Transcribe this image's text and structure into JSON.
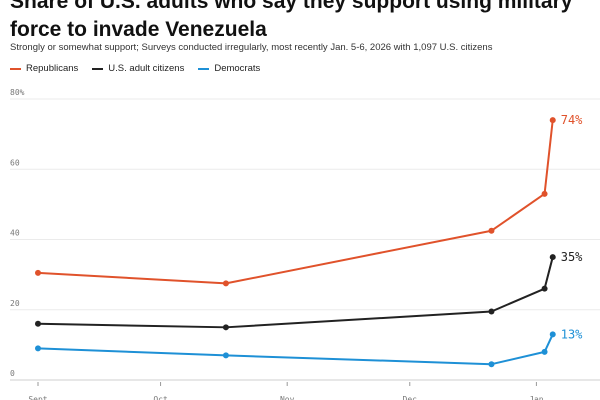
{
  "title": "Share of U.S. adults who say they support using military force to invade Venezuela",
  "subtitle": "Strongly or somewhat support; Surveys conducted irregularly, most recently Jan. 5-6, 2026 with 1,097 U.S. citizens",
  "chart_data": {
    "type": "line",
    "title": "Share of U.S. adults who say they support using military force to invade Venezuela",
    "subtitle": "Strongly or somewhat support; Surveys conducted irregularly, most recently Jan. 5-6, 2026 with 1,097 U.S. citizens",
    "xlabel": "",
    "ylabel": "",
    "ylim": [
      0,
      80
    ],
    "yticks": [
      {
        "value": 0,
        "label": "0"
      },
      {
        "value": 20,
        "label": "20"
      },
      {
        "value": 40,
        "label": "40"
      },
      {
        "value": 60,
        "label": "60"
      },
      {
        "value": 80,
        "label": "80%"
      }
    ],
    "grid": true,
    "legend_position": "top-left",
    "x_domain": [
      "2025-09-01",
      "2026-01-08"
    ],
    "xticks": [
      {
        "date": "2025-09-01",
        "label": "Sept"
      },
      {
        "date": "2025-10-01",
        "label": "Oct"
      },
      {
        "date": "2025-11-01",
        "label": "Nov"
      },
      {
        "date": "2025-12-01",
        "label": "Dec"
      },
      {
        "date": "2026-01-01",
        "label": "Jan"
      }
    ],
    "series": [
      {
        "name": "Republicans",
        "color": "#e0522b",
        "points": [
          {
            "date": "2025-09-01",
            "value": 30.5
          },
          {
            "date": "2025-10-17",
            "value": 27.5
          },
          {
            "date": "2025-12-21",
            "value": 42.5
          },
          {
            "date": "2026-01-03",
            "value": 53
          },
          {
            "date": "2026-01-05",
            "value": 74
          }
        ],
        "end_label": "74%"
      },
      {
        "name": "U.S. adult citizens",
        "color": "#222222",
        "points": [
          {
            "date": "2025-09-01",
            "value": 16
          },
          {
            "date": "2025-10-17",
            "value": 15
          },
          {
            "date": "2025-12-21",
            "value": 19.5
          },
          {
            "date": "2026-01-03",
            "value": 26
          },
          {
            "date": "2026-01-05",
            "value": 35
          }
        ],
        "end_label": "35%"
      },
      {
        "name": "Democrats",
        "color": "#1e90d6",
        "points": [
          {
            "date": "2025-09-01",
            "value": 9
          },
          {
            "date": "2025-10-17",
            "value": 7
          },
          {
            "date": "2025-12-21",
            "value": 4.5
          },
          {
            "date": "2026-01-03",
            "value": 8
          },
          {
            "date": "2026-01-05",
            "value": 13
          }
        ],
        "end_label": "13%"
      }
    ]
  }
}
